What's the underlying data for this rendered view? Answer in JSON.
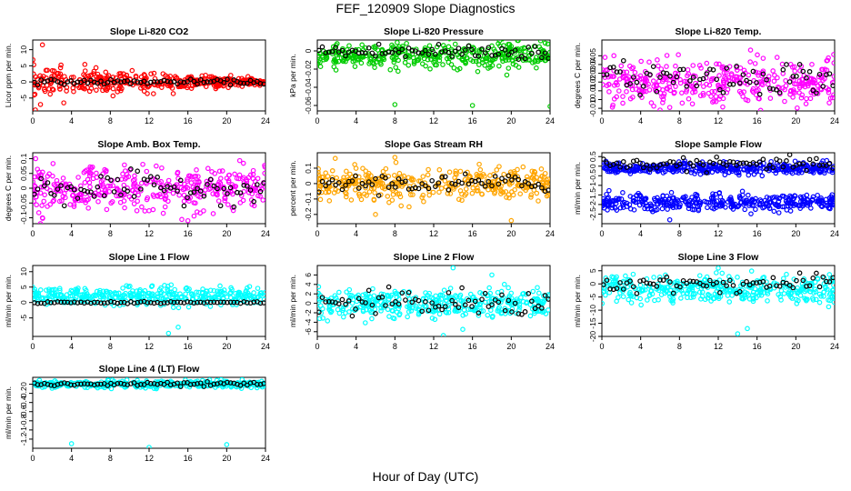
{
  "figure": {
    "title": "FEF_120909  Slope Diagnostics",
    "xlabel": "Hour of Day (UTC)"
  },
  "chart_data": [
    {
      "type": "scatter",
      "title": "Slope Li-820 CO2",
      "ylabel": "Licor ppm per min.",
      "xlim": [
        0,
        24
      ],
      "xticks": [
        0,
        4,
        8,
        12,
        16,
        20,
        24
      ],
      "ylim": [
        -9,
        13
      ],
      "yticks": [
        -5,
        0,
        5,
        10
      ],
      "scatter_color": "#ff0000",
      "series": [
        {
          "name": "black",
          "mean": 0,
          "spread": 0.6
        },
        {
          "name": "color",
          "mean": 0,
          "spread": 3.5,
          "taper": true
        }
      ],
      "outliers": [
        [
          1,
          11.5
        ],
        [
          0.8,
          -7
        ],
        [
          3.2,
          -6.5
        ]
      ]
    },
    {
      "type": "scatter",
      "title": "Slope Li-820 Pressure",
      "ylabel": "kPa per min.",
      "xlim": [
        0,
        24
      ],
      "xticks": [
        0,
        4,
        8,
        12,
        16,
        20,
        24
      ],
      "ylim": [
        -0.066,
        0.012
      ],
      "yticks": [
        -0.06,
        -0.04,
        -0.02,
        0
      ],
      "scatter_color": "#00cc00",
      "series": [
        {
          "name": "black",
          "mean": -0.001,
          "spread": 0.008
        },
        {
          "name": "color",
          "mean": -0.006,
          "spread": 0.012
        }
      ],
      "outliers": [
        [
          8,
          -0.059
        ],
        [
          16,
          -0.06
        ],
        [
          24,
          -0.061
        ],
        [
          20,
          0.005
        ]
      ]
    },
    {
      "type": "scatter",
      "title": "Slope Li-820 Temp.",
      "ylabel": "degrees C per min.",
      "xlim": [
        0,
        24
      ],
      "xticks": [
        0,
        4,
        8,
        12,
        16,
        20,
        24
      ],
      "ylim": [
        -0.013,
        0.068
      ],
      "yticks": [
        -0.01,
        0,
        0.01,
        0.02,
        0.03,
        0.04,
        0.05
      ],
      "scatter_color": "#ff00ff",
      "series": [
        {
          "name": "black",
          "mean": 0.025,
          "spread": 0.015
        },
        {
          "name": "color",
          "mean": 0.02,
          "spread": 0.022
        }
      ],
      "outliers": [
        [
          6,
          -0.012
        ],
        [
          7,
          -0.009
        ]
      ]
    },
    {
      "type": "scatter",
      "title": "Slope Amb. Box Temp.",
      "ylabel": "degrees C per min.",
      "xlim": [
        0,
        24
      ],
      "xticks": [
        0,
        4,
        8,
        12,
        16,
        20,
        24
      ],
      "ylim": [
        -0.12,
        0.12
      ],
      "yticks": [
        -0.1,
        -0.05,
        0,
        0.05,
        0.1
      ],
      "scatter_color": "#ff00ff",
      "series": [
        {
          "name": "black",
          "mean": 0,
          "spread": 0.04
        },
        {
          "name": "color",
          "mean": 0,
          "spread": 0.06
        }
      ],
      "outliers": [
        [
          16,
          -0.11
        ],
        [
          0.3,
          0.1
        ],
        [
          1,
          -0.1
        ]
      ]
    },
    {
      "type": "scatter",
      "title": "Slope Gas Stream RH",
      "ylabel": "percent per min.",
      "xlim": [
        0,
        24
      ],
      "xticks": [
        0,
        4,
        8,
        12,
        16,
        20,
        24
      ],
      "ylim": [
        -0.26,
        0.2
      ],
      "yticks": [
        -0.2,
        -0.1,
        0,
        0.1
      ],
      "scatter_color": "#ffa500",
      "series": [
        {
          "name": "black",
          "mean": 0,
          "spread": 0.05
        },
        {
          "name": "color",
          "mean": 0,
          "spread": 0.08
        }
      ],
      "outliers": [
        [
          20,
          -0.24
        ],
        [
          6,
          -0.2
        ],
        [
          8,
          0.17
        ]
      ]
    },
    {
      "type": "scatter",
      "title": "Slope Sample Flow",
      "ylabel": "ml/min per min.",
      "xlim": [
        0,
        24
      ],
      "xticks": [
        0,
        4,
        8,
        12,
        16,
        20,
        24
      ],
      "ylim": [
        -3,
        0.7
      ],
      "yticks": [
        -2.5,
        -2,
        -1.5,
        -1,
        -0.5,
        0,
        0.5
      ],
      "scatter_color": "#0000ff",
      "series": [
        {
          "name": "black",
          "mean": 0.1,
          "spread": 0.25
        },
        {
          "name": "color",
          "mean": -0.1,
          "spread": 0.25
        },
        {
          "name": "color-low",
          "mean": -1.9,
          "spread": 0.35
        }
      ],
      "outliers": [
        [
          7,
          -2.8
        ]
      ]
    },
    {
      "type": "scatter",
      "title": "Slope Line 1 Flow",
      "ylabel": "ml/min per min.",
      "xlim": [
        0,
        24
      ],
      "xticks": [
        0,
        4,
        8,
        12,
        16,
        20,
        24
      ],
      "ylim": [
        -11,
        12
      ],
      "yticks": [
        -5,
        0,
        5,
        10
      ],
      "scatter_color": "#00ffff",
      "series": [
        {
          "name": "black",
          "mean": 0,
          "spread": 0.3
        },
        {
          "name": "color",
          "mean": 2,
          "spread": 2.5
        }
      ],
      "outliers": [
        [
          14,
          -10
        ],
        [
          15,
          -8
        ],
        [
          0,
          5
        ]
      ]
    },
    {
      "type": "scatter",
      "title": "Slope Line 2 Flow",
      "ylabel": "ml/min per min.",
      "xlim": [
        0,
        24
      ],
      "xticks": [
        0,
        4,
        8,
        12,
        16,
        20,
        24
      ],
      "ylim": [
        -7,
        8
      ],
      "yticks": [
        -6,
        -4,
        -2,
        0,
        2,
        4,
        6
      ],
      "scatter_color": "#00ffff",
      "series": [
        {
          "name": "black",
          "mean": 0,
          "spread": 2.2
        },
        {
          "name": "color",
          "mean": 0,
          "spread": 2.4
        }
      ],
      "outliers": [
        [
          13,
          -6.8
        ],
        [
          14,
          7.5
        ],
        [
          15,
          -5.5
        ],
        [
          18,
          6
        ]
      ]
    },
    {
      "type": "scatter",
      "title": "Slope Line 3 Flow",
      "ylabel": "ml/min per min.",
      "xlim": [
        0,
        24
      ],
      "xticks": [
        0,
        4,
        8,
        12,
        16,
        20,
        24
      ],
      "ylim": [
        -20,
        7
      ],
      "yticks": [
        -20,
        -15,
        -10,
        -5,
        0,
        5
      ],
      "scatter_color": "#00ffff",
      "series": [
        {
          "name": "black",
          "mean": 0,
          "spread": 2.5
        },
        {
          "name": "color",
          "mean": -2,
          "spread": 4
        }
      ],
      "outliers": [
        [
          14,
          -19
        ],
        [
          15,
          -17
        ],
        [
          12,
          6
        ]
      ]
    },
    {
      "type": "scatter",
      "title": "Slope Line 4 (LT) Flow",
      "ylabel": "ml/min per min.",
      "xlim": [
        0,
        24
      ],
      "xticks": [
        0,
        4,
        8,
        12,
        16,
        20,
        24
      ],
      "ylim": [
        -1.4,
        0.15
      ],
      "yticks": [
        -1.2,
        -1,
        -0.8,
        -0.6,
        -0.4,
        -0.2,
        0
      ],
      "scatter_color": "#00ffff",
      "series": [
        {
          "name": "black",
          "mean": 0,
          "spread": 0.04
        },
        {
          "name": "color",
          "mean": 0,
          "spread": 0.06
        }
      ],
      "outliers": [
        [
          4,
          -1.3
        ],
        [
          12,
          -1.38
        ],
        [
          20,
          -1.32
        ]
      ]
    }
  ]
}
